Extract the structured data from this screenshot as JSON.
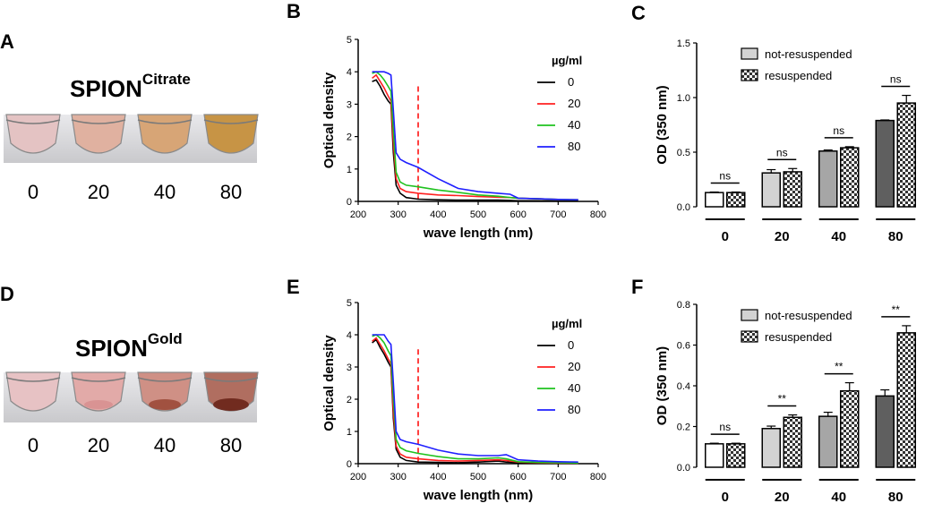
{
  "figure": {
    "panels": {
      "A": {
        "letter": "A",
        "title": "SPION",
        "superscript": "Citrate",
        "vial_labels": [
          "0",
          "20",
          "40",
          "80"
        ],
        "vial_colors": [
          "#e4c3c3",
          "#e0b1a0",
          "#d7a576",
          "#c79445"
        ]
      },
      "D": {
        "letter": "D",
        "title": "SPION",
        "superscript": "Gold",
        "vial_labels": [
          "0",
          "20",
          "40",
          "80"
        ],
        "vial_colors": [
          "#e7c2c4",
          "#e2aaa8",
          "#cf9085",
          "#b06e60"
        ],
        "sediment_colors": [
          "#e7c2c4",
          "#d89090",
          "#9b4a38",
          "#6a2418"
        ]
      },
      "B": {
        "letter": "B"
      },
      "C": {
        "letter": "C"
      },
      "E": {
        "letter": "E"
      },
      "F": {
        "letter": "F"
      }
    },
    "colors": {
      "c0": "#000000",
      "c20": "#ff2020",
      "c40": "#1fc21f",
      "c80": "#1f1fff",
      "ref_line": "#ff0000",
      "not_resuspended": [
        "#ffffff",
        "#d3d3d3",
        "#a6a6a6",
        "#5f5f5f"
      ]
    }
  },
  "chart_data": [
    {
      "id": "B",
      "type": "line",
      "xlabel": "wave length (nm)",
      "ylabel": "Optical density",
      "xlim": [
        200,
        800
      ],
      "ylim": [
        0,
        5
      ],
      "xticks": [
        "200",
        "300",
        "400",
        "500",
        "600",
        "700",
        "800"
      ],
      "yticks": [
        "0",
        "1",
        "2",
        "3",
        "4",
        "5"
      ],
      "legend_title": "µg/ml",
      "reference_line_x": 350,
      "series": [
        {
          "name": "0",
          "x": [
            235,
            245,
            255,
            265,
            275,
            282,
            288,
            295,
            305,
            320,
            350,
            400,
            450,
            500,
            550,
            580,
            600,
            650,
            700,
            750
          ],
          "y": [
            3.7,
            3.75,
            3.55,
            3.3,
            3.1,
            3.0,
            1.5,
            0.5,
            0.25,
            0.12,
            0.07,
            0.05,
            0.04,
            0.04,
            0.04,
            0.03,
            0.02,
            0.02,
            0.01,
            0.01
          ]
        },
        {
          "name": "20",
          "x": [
            235,
            245,
            255,
            265,
            275,
            282,
            288,
            295,
            305,
            320,
            350,
            400,
            450,
            500,
            550,
            580,
            600,
            650,
            700,
            750
          ],
          "y": [
            3.8,
            3.9,
            3.7,
            3.5,
            3.25,
            3.1,
            1.8,
            0.7,
            0.4,
            0.3,
            0.25,
            0.2,
            0.18,
            0.15,
            0.13,
            0.12,
            0.1,
            0.08,
            0.06,
            0.05
          ]
        },
        {
          "name": "40",
          "x": [
            235,
            245,
            255,
            265,
            275,
            282,
            288,
            295,
            305,
            320,
            350,
            400,
            450,
            500,
            550,
            580,
            600,
            650,
            700,
            750
          ],
          "y": [
            3.95,
            4.0,
            3.9,
            3.75,
            3.55,
            3.4,
            2.2,
            0.9,
            0.6,
            0.5,
            0.45,
            0.35,
            0.28,
            0.2,
            0.16,
            0.12,
            0.1,
            0.08,
            0.06,
            0.05
          ]
        },
        {
          "name": "80",
          "x": [
            235,
            245,
            255,
            265,
            275,
            282,
            288,
            295,
            305,
            320,
            350,
            400,
            450,
            500,
            550,
            580,
            600,
            650,
            700,
            750
          ],
          "y": [
            4.0,
            4.0,
            4.0,
            4.0,
            3.95,
            3.9,
            2.8,
            1.5,
            1.3,
            1.2,
            1.05,
            0.7,
            0.4,
            0.3,
            0.25,
            0.22,
            0.1,
            0.08,
            0.06,
            0.05
          ]
        }
      ]
    },
    {
      "id": "C",
      "type": "bar",
      "ylabel": "OD (350 nm)",
      "ylim": [
        0,
        1.5
      ],
      "yticks": [
        "0.0",
        "0.5",
        "1.0",
        "1.5"
      ],
      "categories": [
        "0",
        "20",
        "40",
        "80"
      ],
      "series": [
        {
          "name": "not-resuspended",
          "values": [
            0.13,
            0.31,
            0.51,
            0.79
          ],
          "errors": [
            0.005,
            0.03,
            0.01,
            0.005
          ]
        },
        {
          "name": "resuspended",
          "values": [
            0.13,
            0.32,
            0.54,
            0.95
          ],
          "errors": [
            0.005,
            0.03,
            0.01,
            0.07
          ]
        }
      ],
      "significance": [
        "ns",
        "ns",
        "ns",
        "ns"
      ]
    },
    {
      "id": "E",
      "type": "line",
      "xlabel": "wave length (nm)",
      "ylabel": "Optical density",
      "xlim": [
        200,
        800
      ],
      "ylim": [
        0,
        5
      ],
      "xticks": [
        "200",
        "300",
        "400",
        "500",
        "600",
        "700",
        "800"
      ],
      "yticks": [
        "0",
        "1",
        "2",
        "3",
        "4",
        "5"
      ],
      "legend_title": "µg/ml",
      "reference_line_x": 350,
      "series": [
        {
          "name": "0",
          "x": [
            235,
            245,
            255,
            265,
            275,
            282,
            288,
            295,
            305,
            320,
            350,
            400,
            450,
            500,
            550,
            570,
            600,
            650,
            700,
            750
          ],
          "y": [
            3.75,
            3.85,
            3.6,
            3.4,
            3.15,
            3.0,
            1.4,
            0.45,
            0.2,
            0.1,
            0.05,
            0.04,
            0.03,
            0.05,
            0.08,
            0.05,
            0.03,
            0.02,
            0.01,
            0.01
          ]
        },
        {
          "name": "20",
          "x": [
            235,
            245,
            255,
            265,
            275,
            282,
            288,
            295,
            305,
            320,
            350,
            400,
            450,
            500,
            550,
            570,
            600,
            650,
            700,
            750
          ],
          "y": [
            3.8,
            3.9,
            3.7,
            3.5,
            3.25,
            3.1,
            1.6,
            0.55,
            0.3,
            0.2,
            0.15,
            0.1,
            0.08,
            0.1,
            0.12,
            0.1,
            0.05,
            0.03,
            0.02,
            0.02
          ]
        },
        {
          "name": "40",
          "x": [
            235,
            245,
            255,
            265,
            275,
            282,
            288,
            295,
            305,
            320,
            350,
            400,
            450,
            500,
            550,
            570,
            600,
            650,
            700,
            750
          ],
          "y": [
            3.95,
            4.0,
            3.9,
            3.75,
            3.5,
            3.35,
            2.0,
            0.75,
            0.5,
            0.4,
            0.32,
            0.22,
            0.15,
            0.15,
            0.18,
            0.15,
            0.06,
            0.04,
            0.03,
            0.02
          ]
        },
        {
          "name": "80",
          "x": [
            235,
            245,
            255,
            265,
            275,
            282,
            288,
            295,
            305,
            320,
            350,
            400,
            450,
            500,
            550,
            570,
            600,
            650,
            700,
            750
          ],
          "y": [
            4.0,
            4.0,
            4.0,
            4.0,
            3.8,
            3.7,
            2.5,
            1.0,
            0.75,
            0.68,
            0.6,
            0.42,
            0.3,
            0.25,
            0.25,
            0.28,
            0.12,
            0.08,
            0.06,
            0.05
          ]
        }
      ]
    },
    {
      "id": "F",
      "type": "bar",
      "ylabel": "OD (350 nm)",
      "ylim": [
        0,
        0.8
      ],
      "yticks": [
        "0.0",
        "0.2",
        "0.4",
        "0.6",
        "0.8"
      ],
      "categories": [
        "0",
        "20",
        "40",
        "80"
      ],
      "series": [
        {
          "name": "not-resuspended",
          "values": [
            0.115,
            0.19,
            0.25,
            0.35
          ],
          "errors": [
            0.003,
            0.012,
            0.02,
            0.03
          ]
        },
        {
          "name": "resuspended",
          "values": [
            0.115,
            0.245,
            0.375,
            0.66
          ],
          "errors": [
            0.003,
            0.012,
            0.04,
            0.035
          ]
        }
      ],
      "significance": [
        "ns",
        "**",
        "**",
        "**"
      ]
    }
  ]
}
